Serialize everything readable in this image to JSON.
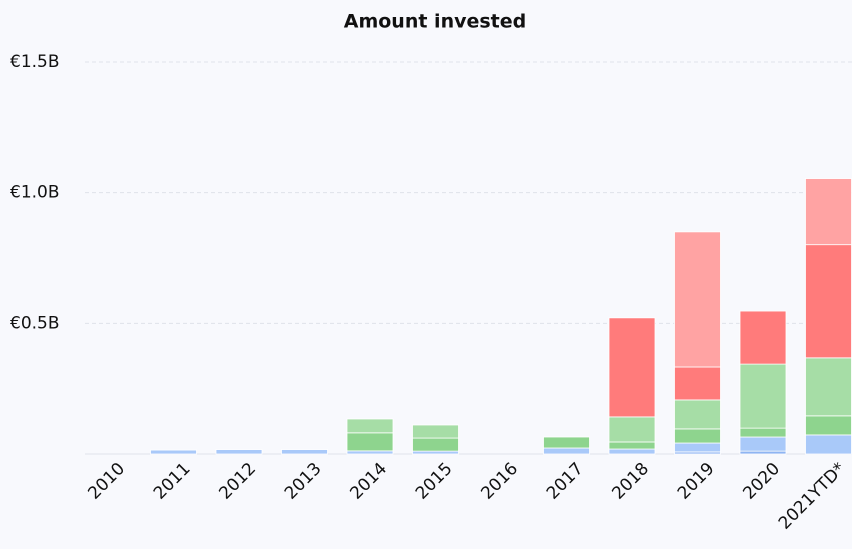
{
  "chart_data": {
    "type": "bar",
    "stacked": true,
    "title": "Amount invested",
    "categories": [
      "2010",
      "2011",
      "2012",
      "2013",
      "2014",
      "2015",
      "2016",
      "2017",
      "2018",
      "2019",
      "2020",
      "2021YTD*"
    ],
    "series": [
      {
        "color": "#8fb5f2",
        "values": [
          0,
          0,
          0,
          0,
          0,
          0,
          0,
          0,
          0,
          8000000,
          11000000,
          0
        ]
      },
      {
        "color": "#a9c9f9",
        "values": [
          0,
          15000000,
          17000000,
          17000000,
          12000000,
          11000000,
          0,
          23000000,
          19000000,
          34000000,
          54000000,
          73000000
        ]
      },
      {
        "color": "#8ed48e",
        "values": [
          0,
          0,
          0,
          0,
          69000000,
          50000000,
          0,
          42000000,
          27000000,
          54000000,
          34000000,
          73000000
        ]
      },
      {
        "color": "#a6dda6",
        "values": [
          0,
          0,
          0,
          0,
          53000000,
          50000000,
          0,
          0,
          96000000,
          111000000,
          245000000,
          222000000
        ]
      },
      {
        "color": "#ff7b7b",
        "values": [
          0,
          0,
          0,
          0,
          0,
          0,
          0,
          0,
          379000000,
          126000000,
          203000000,
          433000000
        ]
      },
      {
        "color": "#ffa3a3",
        "values": [
          0,
          0,
          0,
          0,
          0,
          0,
          0,
          0,
          0,
          517000000,
          0,
          253000000
        ]
      }
    ],
    "ylim": [
      0,
      1500000000
    ],
    "yticks": [
      {
        "value": 500000000,
        "label": "€0.5B"
      },
      {
        "value": 1000000000,
        "label": "€1.0B"
      },
      {
        "value": 1500000000,
        "label": "€1.5B"
      }
    ],
    "grid": true
  }
}
